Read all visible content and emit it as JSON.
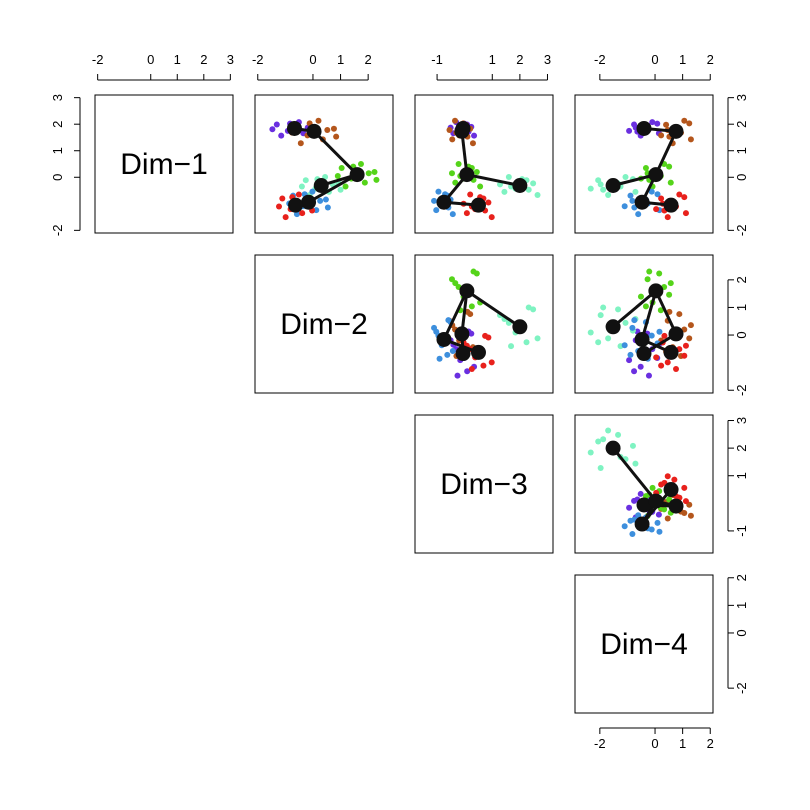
{
  "chart_data": {
    "type": "pairs",
    "variables": [
      {
        "label": "Dim−1",
        "lim": [
          -2.1,
          3.1
        ],
        "ticks": [
          -2,
          0,
          1,
          2,
          3
        ]
      },
      {
        "label": "Dim−2",
        "lim": [
          -2.1,
          2.9
        ],
        "ticks": [
          -2,
          0,
          1,
          2
        ]
      },
      {
        "label": "Dim−3",
        "lim": [
          -1.8,
          3.2
        ],
        "ticks": [
          -1,
          1,
          2,
          3
        ]
      },
      {
        "label": "Dim−4",
        "lim": [
          -2.9,
          2.1
        ],
        "ticks": [
          -2,
          0,
          1,
          2
        ]
      }
    ],
    "clusters": [
      {
        "color": "#6a2fe0",
        "points": [
          [
            1.99,
            -1.31,
            0.09,
            -0.76
          ],
          [
            1.66,
            -0.35,
            -0.41,
            0.14
          ],
          [
            1.9,
            0.05,
            0.24,
            -0.28
          ],
          [
            1.75,
            -0.91,
            -0.16,
            -0.94
          ],
          [
            2.08,
            -0.51,
            -0.31,
            -0.1
          ],
          [
            1.57,
            -1.15,
            0.34,
            -0.52
          ],
          [
            1.87,
            -0.19,
            -0.51,
            -0.7
          ],
          [
            2.02,
            -0.83,
            -0.01,
            0.08
          ],
          [
            1.72,
            0.13,
            0.14,
            -0.64
          ],
          [
            1.81,
            -1.47,
            -0.26,
            -0.22
          ]
        ]
      },
      {
        "color": "#b4561c",
        "points": [
          [
            1.98,
            -0.6,
            0.05,
            0.4
          ],
          [
            1.43,
            0.36,
            -0.45,
            1.3
          ],
          [
            1.83,
            0.76,
            0.2,
            0.88
          ],
          [
            1.58,
            -0.2,
            -0.2,
            0.22
          ],
          [
            2.13,
            0.2,
            -0.35,
            1.06
          ],
          [
            1.28,
            -0.44,
            0.3,
            0.64
          ],
          [
            1.78,
            0.52,
            -0.55,
            0.46
          ],
          [
            2.03,
            -0.12,
            -0.05,
            1.24
          ],
          [
            1.53,
            0.84,
            0.1,
            0.52
          ],
          [
            1.68,
            -0.76,
            -0.3,
            0.94
          ]
        ]
      },
      {
        "color": "#55d41a",
        "points": [
          [
            0.35,
            1.04,
            0.26,
            -0.33
          ],
          [
            -0.2,
            1.88,
            -0.34,
            0.57
          ],
          [
            0.2,
            2.23,
            0.44,
            0.15
          ],
          [
            -0.05,
            1.39,
            -0.04,
            -0.51
          ],
          [
            0.5,
            1.74,
            -0.22,
            0.33
          ],
          [
            -0.35,
            1.18,
            0.56,
            -0.09
          ],
          [
            0.15,
            2.02,
            -0.46,
            -0.27
          ],
          [
            0.4,
            1.46,
            0.14,
            0.51
          ],
          [
            -0.1,
            2.3,
            0.32,
            -0.21
          ],
          [
            0.05,
            0.9,
            -0.16,
            0.21
          ]
        ]
      },
      {
        "color": "#7ff3c2",
        "points": [
          [
            -0.11,
            -0.26,
            2.24,
            -2.06
          ],
          [
            -0.55,
            0.58,
            1.44,
            -0.71
          ],
          [
            -0.23,
            0.93,
            2.48,
            -1.34
          ],
          [
            -0.43,
            0.09,
            1.84,
            -2.33
          ],
          [
            0.01,
            0.44,
            1.6,
            -1.07
          ],
          [
            -0.67,
            -0.12,
            2.64,
            -1.7
          ],
          [
            -0.27,
            0.72,
            1.28,
            -1.97
          ],
          [
            -0.07,
            0.16,
            2.08,
            -0.8
          ],
          [
            -0.47,
            1.0,
            2.32,
            -1.88
          ],
          [
            -0.35,
            -0.4,
            1.68,
            -1.25
          ]
        ]
      },
      {
        "color": "#3d8fdd",
        "points": [
          [
            -0.69,
            -0.72,
            -0.63,
            -0.89
          ],
          [
            -1.24,
            0.12,
            -1.03,
            0.16
          ],
          [
            -0.84,
            0.47,
            -0.51,
            -0.33
          ],
          [
            -1.09,
            -0.37,
            -0.83,
            -1.1
          ],
          [
            -0.54,
            -0.02,
            -0.95,
            -0.12
          ],
          [
            -1.39,
            -0.58,
            -0.43,
            -0.61
          ],
          [
            -0.89,
            0.26,
            -1.11,
            -0.82
          ],
          [
            -0.64,
            -0.3,
            -0.71,
            0.09
          ],
          [
            -1.14,
            0.54,
            -0.59,
            -0.75
          ],
          [
            -0.99,
            -0.86,
            -0.91,
            -0.26
          ]
        ]
      },
      {
        "color": "#e8211c",
        "points": [
          [
            -0.8,
            -1.11,
            0.68,
            0.22
          ],
          [
            -1.35,
            -0.39,
            0.08,
            1.12
          ],
          [
            -0.95,
            -0.09,
            0.86,
            0.7
          ],
          [
            -1.2,
            -0.81,
            0.38,
            0.04
          ],
          [
            -0.65,
            -0.51,
            0.2,
            0.88
          ],
          [
            -1.5,
            -0.99,
            0.98,
            0.46
          ],
          [
            -1.0,
            -0.27,
            -0.04,
            0.28
          ],
          [
            -0.75,
            -0.75,
            0.56,
            1.06
          ],
          [
            -1.25,
            -0.03,
            0.74,
            0.34
          ],
          [
            -1.1,
            -1.23,
            0.26,
            0.76
          ]
        ]
      }
    ],
    "centroids": [
      [
        1.84,
        -0.67,
        -0.06,
        -0.4
      ],
      [
        1.73,
        0.04,
        -0.1,
        0.76
      ],
      [
        0.1,
        1.6,
        0.08,
        0.03
      ],
      [
        -0.31,
        0.3,
        2.0,
        -1.52
      ],
      [
        -0.94,
        -0.16,
        -0.75,
        -0.47
      ],
      [
        -1.05,
        -0.63,
        0.5,
        0.58
      ]
    ],
    "edges": [
      [
        0,
        1
      ],
      [
        1,
        2
      ],
      [
        2,
        3
      ],
      [
        2,
        4
      ],
      [
        4,
        5
      ]
    ]
  }
}
